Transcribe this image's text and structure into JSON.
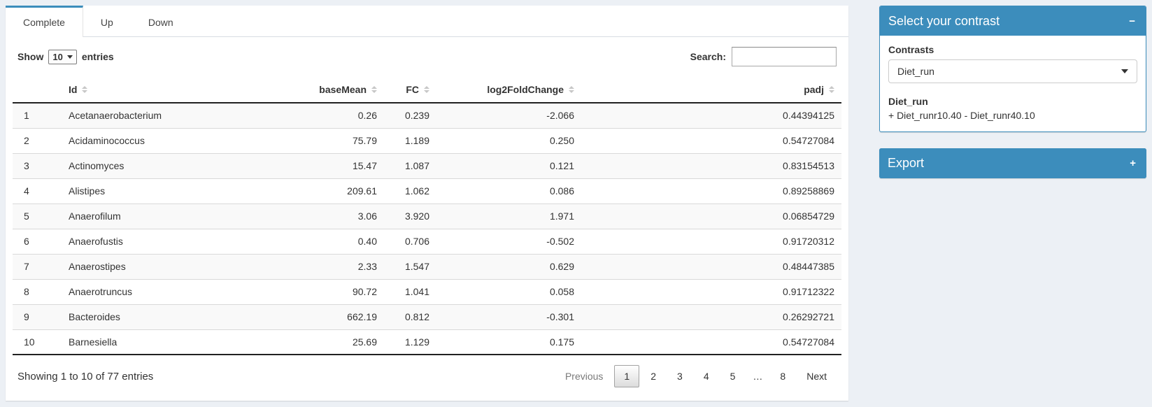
{
  "tabs": [
    {
      "label": "Complete",
      "state": "active"
    },
    {
      "label": "Up",
      "state": "inactive"
    },
    {
      "label": "Down",
      "state": "inactive"
    }
  ],
  "table_controls": {
    "show_label": "Show",
    "entries_value": "10",
    "entries_suffix": "entries",
    "search_label": "Search:",
    "search_value": ""
  },
  "table": {
    "columns": [
      {
        "label": "Id",
        "align": "left"
      },
      {
        "label": "baseMean",
        "align": "right"
      },
      {
        "label": "FC",
        "align": "right"
      },
      {
        "label": "log2FoldChange",
        "align": "right"
      },
      {
        "label": "padj",
        "align": "right"
      }
    ],
    "rows": [
      {
        "index": "1",
        "id": "Acetanaerobacterium",
        "baseMean": "0.26",
        "fc": "0.239",
        "log2fc": "-2.066",
        "padj": "0.44394125"
      },
      {
        "index": "2",
        "id": "Acidaminococcus",
        "baseMean": "75.79",
        "fc": "1.189",
        "log2fc": "0.250",
        "padj": "0.54727084"
      },
      {
        "index": "3",
        "id": "Actinomyces",
        "baseMean": "15.47",
        "fc": "1.087",
        "log2fc": "0.121",
        "padj": "0.83154513"
      },
      {
        "index": "4",
        "id": "Alistipes",
        "baseMean": "209.61",
        "fc": "1.062",
        "log2fc": "0.086",
        "padj": "0.89258869"
      },
      {
        "index": "5",
        "id": "Anaerofilum",
        "baseMean": "3.06",
        "fc": "3.920",
        "log2fc": "1.971",
        "padj": "0.06854729"
      },
      {
        "index": "6",
        "id": "Anaerofustis",
        "baseMean": "0.40",
        "fc": "0.706",
        "log2fc": "-0.502",
        "padj": "0.91720312"
      },
      {
        "index": "7",
        "id": "Anaerostipes",
        "baseMean": "2.33",
        "fc": "1.547",
        "log2fc": "0.629",
        "padj": "0.48447385"
      },
      {
        "index": "8",
        "id": "Anaerotruncus",
        "baseMean": "90.72",
        "fc": "1.041",
        "log2fc": "0.058",
        "padj": "0.91712322"
      },
      {
        "index": "9",
        "id": "Bacteroides",
        "baseMean": "662.19",
        "fc": "0.812",
        "log2fc": "-0.301",
        "padj": "0.26292721"
      },
      {
        "index": "10",
        "id": "Barnesiella",
        "baseMean": "25.69",
        "fc": "1.129",
        "log2fc": "0.175",
        "padj": "0.54727084"
      }
    ]
  },
  "footer": {
    "info": "Showing 1 to 10 of 77 entries",
    "pagination": [
      {
        "label": "Previous",
        "state": "disabled"
      },
      {
        "label": "1",
        "state": "current"
      },
      {
        "label": "2",
        "state": "link"
      },
      {
        "label": "3",
        "state": "link"
      },
      {
        "label": "4",
        "state": "link"
      },
      {
        "label": "5",
        "state": "link"
      },
      {
        "label": "…",
        "state": "ellipsis"
      },
      {
        "label": "8",
        "state": "link"
      },
      {
        "label": "Next",
        "state": "link"
      }
    ]
  },
  "sidebar": {
    "contrast_panel": {
      "title": "Select your contrast",
      "collapse_icon": "−",
      "contrasts_label": "Contrasts",
      "selected_contrast": "Diet_run",
      "contrast_name": "Diet_run",
      "contrast_formula": "+ Diet_runr10.40 - Diet_runr40.10"
    },
    "export_panel": {
      "title": "Export",
      "expand_icon": "+"
    }
  },
  "colors": {
    "primary": "#3c8dbc",
    "background": "#ecf0f5",
    "stripe": "#f9f9f9"
  }
}
